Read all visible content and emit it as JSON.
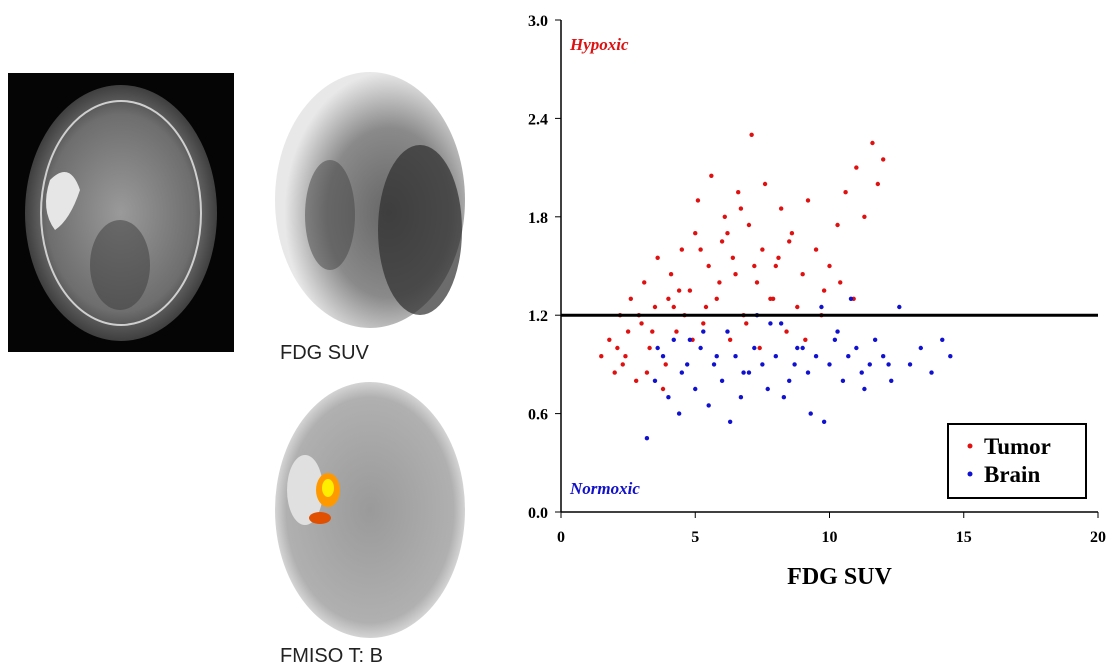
{
  "panels": {
    "fdg_caption": "FDG SUV",
    "fmiso_caption": "FMISO T: B"
  },
  "chart_data": {
    "type": "scatter",
    "xlabel": "FDG SUV",
    "xlim": [
      0,
      20
    ],
    "xticks": [
      0,
      5,
      10,
      15,
      20
    ],
    "ylim": [
      0,
      3
    ],
    "yticks": [
      {
        "value": 0,
        "label": "0.0"
      },
      0.6,
      1.2,
      1.8,
      2.4,
      {
        "value": 3,
        "label": "3.0"
      }
    ],
    "hline": 1.2,
    "legend": "lower right",
    "annotations": [
      {
        "text": "Hypoxic",
        "color": "#dd1111"
      },
      {
        "text": "Normoxic",
        "color": "#1111cc"
      }
    ],
    "series": [
      {
        "name": "Tumor",
        "color": "#e01010",
        "x": [
          1.5,
          1.8,
          2.0,
          2.2,
          2.3,
          2.5,
          2.6,
          2.8,
          3.0,
          3.1,
          3.3,
          3.5,
          3.6,
          3.8,
          4.0,
          4.1,
          4.3,
          4.5,
          4.6,
          4.8,
          5.0,
          5.1,
          5.3,
          5.5,
          5.6,
          5.8,
          6.0,
          6.1,
          6.3,
          6.5,
          6.6,
          6.8,
          7.0,
          7.1,
          7.3,
          7.5,
          7.6,
          7.8,
          8.0,
          8.2,
          8.4,
          8.6,
          8.8,
          9.0,
          9.2,
          9.5,
          9.8,
          10.0,
          10.3,
          10.6,
          11.0,
          11.3,
          11.6,
          12.0,
          2.1,
          2.4,
          2.9,
          3.4,
          3.9,
          4.4,
          4.9,
          5.4,
          5.9,
          6.4,
          6.9,
          7.4,
          7.9,
          8.5,
          9.1,
          9.7,
          10.4,
          11.8,
          5.2,
          6.7,
          7.2,
          3.2,
          4.2,
          6.2,
          8.1,
          10.9
        ],
        "values": [
          0.95,
          1.05,
          0.85,
          1.2,
          0.9,
          1.1,
          1.3,
          0.8,
          1.15,
          1.4,
          1.0,
          1.25,
          1.55,
          0.75,
          1.3,
          1.45,
          1.1,
          1.6,
          1.2,
          1.35,
          1.7,
          1.9,
          1.15,
          1.5,
          2.05,
          1.3,
          1.65,
          1.8,
          1.05,
          1.45,
          1.95,
          1.2,
          1.75,
          2.3,
          1.4,
          1.6,
          2.0,
          1.3,
          1.5,
          1.85,
          1.1,
          1.7,
          1.25,
          1.45,
          1.9,
          1.6,
          1.35,
          1.5,
          1.75,
          1.95,
          2.1,
          1.8,
          2.25,
          2.15,
          1.0,
          0.95,
          1.2,
          1.1,
          0.9,
          1.35,
          1.05,
          1.25,
          1.4,
          1.55,
          1.15,
          1.0,
          1.3,
          1.65,
          1.05,
          1.2,
          1.4,
          2.0,
          1.6,
          1.85,
          1.5,
          0.85,
          1.25,
          1.7,
          1.55,
          1.3
        ]
      },
      {
        "name": "Brain",
        "color": "#1010d0",
        "x": [
          3.2,
          3.5,
          3.8,
          4.0,
          4.2,
          4.5,
          4.7,
          5.0,
          5.2,
          5.5,
          5.7,
          6.0,
          6.2,
          6.5,
          6.7,
          7.0,
          7.2,
          7.5,
          7.7,
          8.0,
          8.2,
          8.5,
          8.7,
          9.0,
          9.2,
          9.5,
          9.7,
          10.0,
          10.2,
          10.5,
          10.7,
          11.0,
          11.2,
          11.5,
          11.7,
          12.0,
          12.3,
          12.6,
          13.0,
          13.4,
          13.8,
          14.2,
          14.5,
          3.6,
          4.4,
          5.3,
          6.3,
          7.3,
          8.3,
          9.3,
          10.3,
          11.3,
          12.2,
          10.8,
          9.8,
          8.8,
          7.8,
          6.8,
          5.8,
          4.8
        ],
        "values": [
          0.45,
          0.8,
          0.95,
          0.7,
          1.05,
          0.85,
          0.9,
          0.75,
          1.0,
          0.65,
          0.9,
          0.8,
          1.1,
          0.95,
          0.7,
          0.85,
          1.0,
          0.9,
          0.75,
          0.95,
          1.15,
          0.8,
          0.9,
          1.0,
          0.85,
          0.95,
          1.25,
          0.9,
          1.05,
          0.8,
          0.95,
          1.0,
          0.85,
          0.9,
          1.05,
          0.95,
          0.8,
          1.25,
          0.9,
          1.0,
          0.85,
          1.05,
          0.95,
          1.0,
          0.6,
          1.1,
          0.55,
          1.2,
          0.7,
          0.6,
          1.1,
          0.75,
          0.9,
          1.3,
          0.55,
          1.0,
          1.15,
          0.85,
          0.95,
          1.05
        ]
      }
    ]
  }
}
